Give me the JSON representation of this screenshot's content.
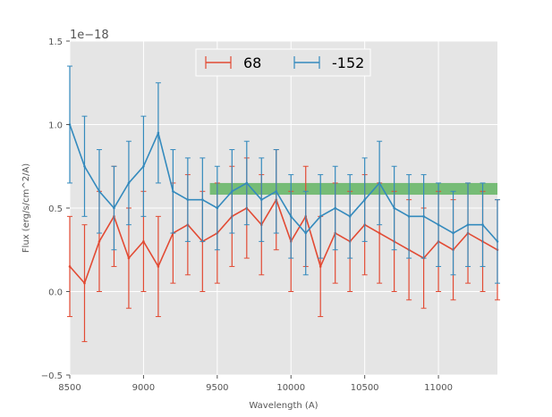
{
  "chart_data": {
    "type": "line",
    "title": "",
    "xlabel": "Wavelength (A)",
    "ylabel": "Flux (erg/s/cm^2/A)",
    "offset_text": "1e−18",
    "xlim": [
      8500,
      11400
    ],
    "ylim": [
      -0.5,
      1.5
    ],
    "xticks": [
      8500,
      9000,
      9500,
      10000,
      10500,
      11000
    ],
    "yticks": [
      -0.5,
      0.0,
      0.5,
      1.0,
      1.5
    ],
    "xtick_labels": [
      "8500",
      "9000",
      "9500",
      "10000",
      "10500",
      "11000"
    ],
    "ytick_labels": [
      "−0.5",
      "0.0",
      "0.5",
      "1.0",
      "1.5"
    ],
    "grid": true,
    "legend_position": "top-center",
    "band": {
      "x0": 9450,
      "x1": 11400,
      "y0": 0.58,
      "y1": 0.65,
      "color": "#2ca02c"
    },
    "series": [
      {
        "name": "68",
        "color": "#e24a33",
        "x": [
          8500,
          8600,
          8700,
          8800,
          8900,
          9000,
          9100,
          9200,
          9300,
          9400,
          9500,
          9600,
          9700,
          9800,
          9900,
          10000,
          10100,
          10200,
          10300,
          10400,
          10500,
          10600,
          10700,
          10800,
          10900,
          11000,
          11100,
          11200,
          11300,
          11400
        ],
        "y": [
          0.15,
          0.05,
          0.3,
          0.45,
          0.2,
          0.3,
          0.15,
          0.35,
          0.4,
          0.3,
          0.35,
          0.45,
          0.5,
          0.4,
          0.55,
          0.3,
          0.45,
          0.15,
          0.35,
          0.3,
          0.4,
          0.35,
          0.3,
          0.25,
          0.2,
          0.3,
          0.25,
          0.35,
          0.3,
          0.25
        ],
        "err": [
          0.3,
          0.35,
          0.3,
          0.3,
          0.3,
          0.3,
          0.3,
          0.3,
          0.3,
          0.3,
          0.3,
          0.3,
          0.3,
          0.3,
          0.3,
          0.3,
          0.3,
          0.3,
          0.3,
          0.3,
          0.3,
          0.3,
          0.3,
          0.3,
          0.3,
          0.3,
          0.3,
          0.3,
          0.3,
          0.3
        ]
      },
      {
        "name": "-152",
        "color": "#348abd",
        "x": [
          8500,
          8600,
          8700,
          8800,
          8900,
          9000,
          9100,
          9200,
          9300,
          9400,
          9500,
          9600,
          9700,
          9800,
          9900,
          10000,
          10100,
          10200,
          10300,
          10400,
          10500,
          10600,
          10700,
          10800,
          10900,
          11000,
          11100,
          11200,
          11300,
          11400
        ],
        "y": [
          1.0,
          0.75,
          0.6,
          0.5,
          0.65,
          0.75,
          0.95,
          0.6,
          0.55,
          0.55,
          0.5,
          0.6,
          0.65,
          0.55,
          0.6,
          0.45,
          0.35,
          0.45,
          0.5,
          0.45,
          0.55,
          0.65,
          0.5,
          0.45,
          0.45,
          0.4,
          0.35,
          0.4,
          0.4,
          0.3
        ],
        "err": [
          0.35,
          0.3,
          0.25,
          0.25,
          0.25,
          0.3,
          0.3,
          0.25,
          0.25,
          0.25,
          0.25,
          0.25,
          0.25,
          0.25,
          0.25,
          0.25,
          0.25,
          0.25,
          0.25,
          0.25,
          0.25,
          0.25,
          0.25,
          0.25,
          0.25,
          0.25,
          0.25,
          0.25,
          0.25,
          0.25
        ]
      }
    ]
  }
}
